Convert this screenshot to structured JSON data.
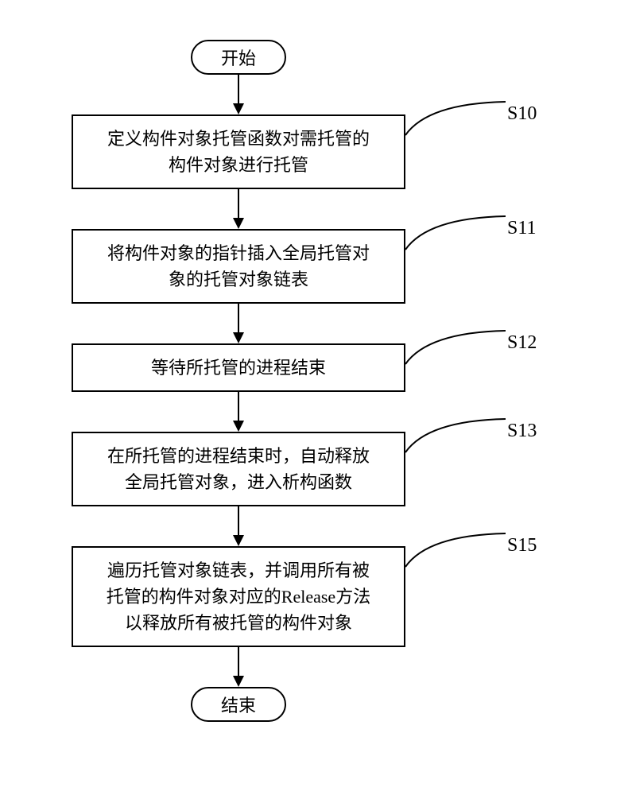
{
  "flowchart": {
    "type": "flowchart",
    "background_color": "#ffffff",
    "stroke_color": "#000000",
    "stroke_width": 2,
    "font_family_cn": "SimSun",
    "font_family_label": "Times New Roman",
    "node_font_size": 22,
    "label_font_size": 24,
    "terminal_width": 120,
    "terminal_height": 44,
    "terminal_border_radius": 22,
    "process_width": 420,
    "arrow_gap": 50,
    "start": {
      "text": "开始"
    },
    "end": {
      "text": "结束"
    },
    "steps": [
      {
        "label": "S10",
        "text": "定义构件对象托管函数对需托管的\n构件对象进行托管"
      },
      {
        "label": "S11",
        "text": "将构件对象的指针插入全局托管对\n象的托管对象链表"
      },
      {
        "label": "S12",
        "text": "等待所托管的进程结束"
      },
      {
        "label": "S13",
        "text": "在所托管的进程结束时，自动释放\n全局托管对象，进入析构函数"
      },
      {
        "label": "S15",
        "text": "遍历托管对象链表，并调用所有被\n托管的构件对象对应的Release方法\n以释放所有被托管的构件对象"
      }
    ],
    "connector": {
      "color": "#000000",
      "width": 2,
      "curve": "quadratic"
    }
  }
}
